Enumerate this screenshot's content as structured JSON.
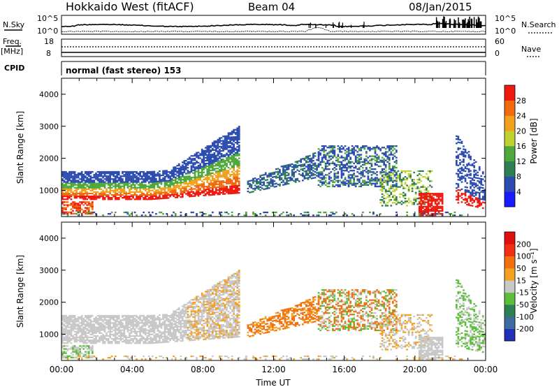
{
  "header": {
    "station": "Hokkaido West (fitACF)",
    "beam": "Beam 04",
    "date": "08/Jan/2015"
  },
  "strips": {
    "nsky": {
      "label": "N.Sky",
      "ticks": [
        "10^5",
        "10^0"
      ],
      "right_label": "N.Search"
    },
    "freq": {
      "label_top": "Freq.",
      "label_unit": "[MHz]",
      "ticks": [
        "18",
        "8"
      ],
      "right_ticks": [
        "60",
        "0"
      ],
      "right_label": "Nave"
    },
    "cpid": {
      "label": "CPID",
      "mode": "normal (fast stereo) 153"
    }
  },
  "chart_data": [
    {
      "type": "heatmap",
      "name": "power",
      "ylabel": "Slant Range [km]",
      "yticks": [
        "4000",
        "3000",
        "2000",
        "1000"
      ],
      "ylim": [
        180,
        4500
      ],
      "xlim_hours": [
        0,
        24
      ],
      "colorbar": {
        "label": "Power [dB]",
        "levels": [
          "4",
          "8",
          "12",
          "16",
          "20",
          "24",
          "28"
        ],
        "colors": [
          "#1a1aff",
          "#2d4cb0",
          "#2e7f54",
          "#4fa83c",
          "#bfd230",
          "#f0a21c",
          "#f06a10",
          "#ee1a10"
        ]
      }
    },
    {
      "type": "heatmap",
      "name": "velocity",
      "ylabel": "Slant Range [km]",
      "yticks": [
        "4000",
        "3000",
        "2000",
        "1000"
      ],
      "ylim": [
        180,
        4500
      ],
      "xlim_hours": [
        0,
        24
      ],
      "xticks": [
        "00:00",
        "04:00",
        "08:00",
        "12:00",
        "16:00",
        "20:00",
        "00:00"
      ],
      "xlabel": "Time UT",
      "colorbar": {
        "label": "Velocity [m s⁻¹]",
        "levels": [
          "200",
          "100",
          "50",
          "15",
          "-15",
          "-50",
          "-100",
          "-200"
        ],
        "colors": [
          "#2230b8",
          "#3c6ca0",
          "#2e7f54",
          "#5bbf3a",
          "#c8c8c8",
          "#f5a020",
          "#f07010",
          "#f03010",
          "#e01010"
        ]
      }
    }
  ]
}
